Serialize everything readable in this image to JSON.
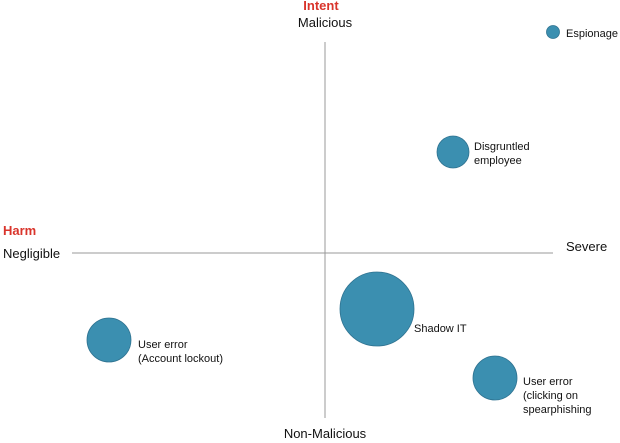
{
  "axes": {
    "vertical_title": "Intent",
    "vertical_top": "Malicious",
    "vertical_bottom": "Non-Malicious",
    "horizontal_title": "Harm",
    "horizontal_left": "Negligible",
    "horizontal_right": "Severe",
    "title_color": "#d9342b",
    "axis_color": "#999999"
  },
  "bubble_color": "#3b8fb0",
  "bubble_stroke": "#2f7391",
  "bubbles": [
    {
      "lines": [
        "Espionage"
      ]
    },
    {
      "lines": [
        "Disgruntled",
        "employee"
      ]
    },
    {
      "lines": [
        "Shadow IT"
      ]
    },
    {
      "lines": [
        "User error",
        "(Account lockout)"
      ]
    },
    {
      "lines": [
        "User error",
        "(clicking on",
        "spearphishing"
      ]
    }
  ]
}
